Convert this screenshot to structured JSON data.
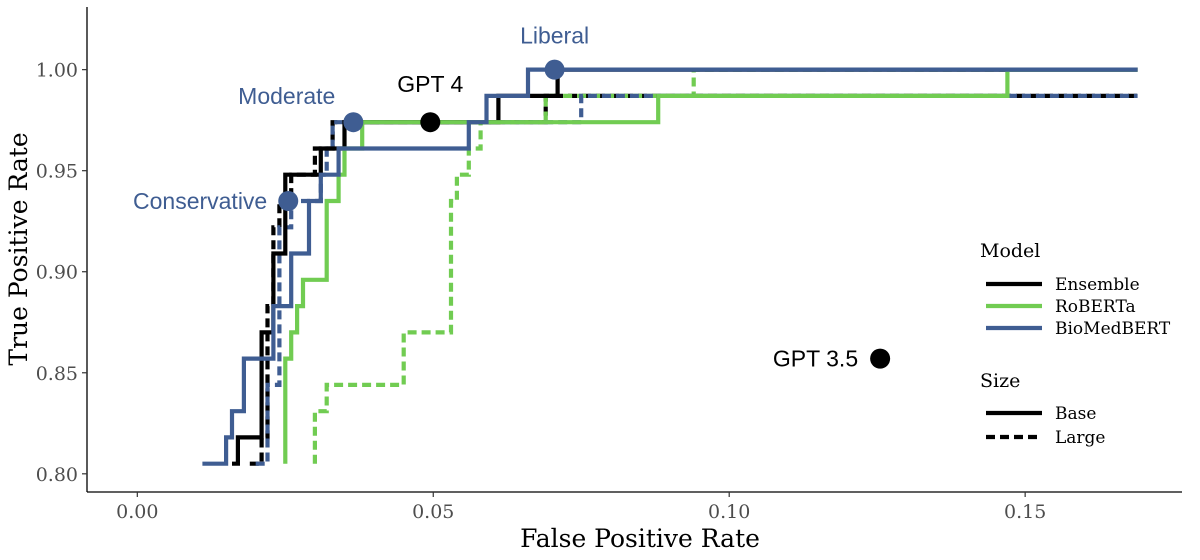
{
  "chart_data": {
    "type": "line",
    "xlabel": "False Positive Rate",
    "ylabel": "True Positive Rate",
    "xlim": [
      -0.0085,
      0.1765
    ],
    "ylim": [
      0.791,
      1.031
    ],
    "x_ticks": [
      0.0,
      0.05,
      0.1,
      0.15
    ],
    "x_tick_labels": [
      "0.00",
      "0.05",
      "0.10",
      "0.15"
    ],
    "y_ticks": [
      0.8,
      0.85,
      0.9,
      0.95,
      1.0
    ],
    "y_tick_labels": [
      "0.80",
      "0.85",
      "0.90",
      "0.95",
      "1.00"
    ],
    "grid": false,
    "colors": {
      "Ensemble": "#000000",
      "RoBERTa": "#71cc52",
      "BioMedBERT": "#3f5d92"
    },
    "legend": {
      "position": "right",
      "model_title": "Model",
      "model_items": [
        {
          "name": "Ensemble",
          "color": "#000000"
        },
        {
          "name": "RoBERTa",
          "color": "#71cc52"
        },
        {
          "name": "BioMedBERT",
          "color": "#3f5d92"
        }
      ],
      "size_title": "Size",
      "size_items": [
        {
          "name": "Base",
          "dash": "solid"
        },
        {
          "name": "Large",
          "dash": "dashed"
        }
      ]
    },
    "series": [
      {
        "model": "Ensemble",
        "size": "Large",
        "color": "#000000",
        "dashed": true,
        "points": [
          [
            0.019,
            0.805
          ],
          [
            0.021,
            0.805
          ],
          [
            0.021,
            0.818
          ],
          [
            0.022,
            0.818
          ],
          [
            0.022,
            0.883
          ],
          [
            0.023,
            0.883
          ],
          [
            0.023,
            0.922
          ],
          [
            0.024,
            0.922
          ],
          [
            0.024,
            0.935
          ],
          [
            0.026,
            0.935
          ],
          [
            0.026,
            0.948
          ],
          [
            0.03,
            0.948
          ],
          [
            0.03,
            0.961
          ],
          [
            0.033,
            0.961
          ],
          [
            0.033,
            0.974
          ],
          [
            0.069,
            0.974
          ],
          [
            0.069,
            0.987
          ],
          [
            0.169,
            0.987
          ]
        ]
      },
      {
        "model": "RoBERTa",
        "size": "Large",
        "color": "#71cc52",
        "dashed": true,
        "points": [
          [
            0.03,
            0.805
          ],
          [
            0.03,
            0.831
          ],
          [
            0.032,
            0.831
          ],
          [
            0.032,
            0.844
          ],
          [
            0.045,
            0.844
          ],
          [
            0.045,
            0.87
          ],
          [
            0.053,
            0.87
          ],
          [
            0.053,
            0.935
          ],
          [
            0.054,
            0.935
          ],
          [
            0.054,
            0.948
          ],
          [
            0.056,
            0.948
          ],
          [
            0.056,
            0.961
          ],
          [
            0.058,
            0.961
          ],
          [
            0.058,
            0.974
          ],
          [
            0.069,
            0.974
          ],
          [
            0.069,
            0.987
          ],
          [
            0.094,
            0.987
          ],
          [
            0.094,
            1.0
          ],
          [
            0.147,
            1.0
          ]
        ]
      },
      {
        "model": "BioMedBERT",
        "size": "Large",
        "color": "#3f5d92",
        "dashed": true,
        "points": [
          [
            0.02,
            0.805
          ],
          [
            0.022,
            0.805
          ],
          [
            0.022,
            0.844
          ],
          [
            0.024,
            0.844
          ],
          [
            0.024,
            0.922
          ],
          [
            0.026,
            0.922
          ],
          [
            0.026,
            0.935
          ],
          [
            0.031,
            0.935
          ],
          [
            0.031,
            0.948
          ],
          [
            0.032,
            0.948
          ],
          [
            0.032,
            0.961
          ],
          [
            0.033,
            0.961
          ],
          [
            0.033,
            0.974
          ],
          [
            0.075,
            0.974
          ],
          [
            0.075,
            0.987
          ],
          [
            0.169,
            0.987
          ]
        ]
      },
      {
        "model": "Ensemble",
        "size": "Base",
        "color": "#000000",
        "dashed": false,
        "points": [
          [
            0.016,
            0.805
          ],
          [
            0.017,
            0.805
          ],
          [
            0.017,
            0.818
          ],
          [
            0.021,
            0.818
          ],
          [
            0.021,
            0.87
          ],
          [
            0.023,
            0.87
          ],
          [
            0.023,
            0.909
          ],
          [
            0.025,
            0.909
          ],
          [
            0.025,
            0.948
          ],
          [
            0.031,
            0.948
          ],
          [
            0.031,
            0.961
          ],
          [
            0.035,
            0.961
          ],
          [
            0.035,
            0.974
          ],
          [
            0.061,
            0.974
          ],
          [
            0.061,
            0.987
          ],
          [
            0.071,
            0.987
          ],
          [
            0.071,
            1.0
          ],
          [
            0.169,
            1.0
          ]
        ]
      },
      {
        "model": "RoBERTa",
        "size": "Base",
        "color": "#71cc52",
        "dashed": false,
        "points": [
          [
            0.025,
            0.805
          ],
          [
            0.025,
            0.857
          ],
          [
            0.026,
            0.857
          ],
          [
            0.026,
            0.87
          ],
          [
            0.027,
            0.87
          ],
          [
            0.027,
            0.883
          ],
          [
            0.028,
            0.883
          ],
          [
            0.028,
            0.896
          ],
          [
            0.032,
            0.896
          ],
          [
            0.032,
            0.935
          ],
          [
            0.034,
            0.935
          ],
          [
            0.034,
            0.948
          ],
          [
            0.035,
            0.948
          ],
          [
            0.035,
            0.961
          ],
          [
            0.038,
            0.961
          ],
          [
            0.038,
            0.974
          ],
          [
            0.088,
            0.974
          ],
          [
            0.088,
            0.987
          ],
          [
            0.147,
            0.987
          ],
          [
            0.147,
            1.0
          ],
          [
            0.169,
            1.0
          ]
        ]
      },
      {
        "model": "BioMedBERT",
        "size": "Base",
        "color": "#3f5d92",
        "dashed": false,
        "points": [
          [
            0.011,
            0.805
          ],
          [
            0.015,
            0.805
          ],
          [
            0.015,
            0.818
          ],
          [
            0.016,
            0.818
          ],
          [
            0.016,
            0.831
          ],
          [
            0.018,
            0.831
          ],
          [
            0.018,
            0.857
          ],
          [
            0.023,
            0.857
          ],
          [
            0.023,
            0.883
          ],
          [
            0.026,
            0.883
          ],
          [
            0.026,
            0.909
          ],
          [
            0.029,
            0.909
          ],
          [
            0.029,
            0.935
          ],
          [
            0.031,
            0.935
          ],
          [
            0.031,
            0.948
          ],
          [
            0.034,
            0.948
          ],
          [
            0.034,
            0.961
          ],
          [
            0.056,
            0.961
          ],
          [
            0.056,
            0.974
          ],
          [
            0.059,
            0.974
          ],
          [
            0.059,
            0.987
          ],
          [
            0.066,
            0.987
          ],
          [
            0.066,
            1.0
          ],
          [
            0.169,
            1.0
          ]
        ]
      }
    ],
    "points": [
      {
        "label": "Conservative",
        "x": 0.0255,
        "y": 0.935,
        "color": "#3f5d92",
        "label_color": "#3f5d92"
      },
      {
        "label": "Moderate",
        "x": 0.0365,
        "y": 0.974,
        "color": "#3f5d92",
        "label_color": "#3f5d92"
      },
      {
        "label": "Liberal",
        "x": 0.0705,
        "y": 1.0,
        "color": "#3f5d92",
        "label_color": "#3f5d92"
      },
      {
        "label": "GPT 4",
        "x": 0.0495,
        "y": 0.974,
        "color": "#000000",
        "label_color": "#000000"
      },
      {
        "label": "GPT 3.5",
        "x": 0.1255,
        "y": 0.857,
        "color": "#000000",
        "label_color": "#000000"
      }
    ]
  }
}
